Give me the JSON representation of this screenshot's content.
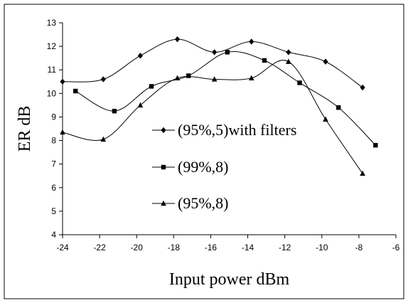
{
  "chart_data": {
    "type": "line",
    "xlabel": "Input power dBm",
    "ylabel": "ER dB",
    "xlim": [
      -24,
      -6
    ],
    "ylim": [
      4,
      13
    ],
    "x_ticks": [
      "-24",
      "-22",
      "-20",
      "-18",
      "-16",
      "-14",
      "-12",
      "-10",
      "-8",
      "-6"
    ],
    "y_ticks": [
      "4",
      "5",
      "6",
      "7",
      "8",
      "9",
      "10",
      "11",
      "12",
      "13"
    ],
    "grid": false,
    "legend_position": "center",
    "series": [
      {
        "name": "(95%,5)with filters",
        "marker": "diamond",
        "points": [
          [
            -24,
            10.5
          ],
          [
            -21.8,
            10.6
          ],
          [
            -19.8,
            11.6
          ],
          [
            -17.8,
            12.3
          ],
          [
            -15.8,
            11.75
          ],
          [
            -13.8,
            12.2
          ],
          [
            -11.8,
            11.75
          ],
          [
            -9.8,
            11.35
          ],
          [
            -7.8,
            10.25
          ]
        ]
      },
      {
        "name": "(99%,8)",
        "marker": "square",
        "points": [
          [
            -23.3,
            10.1
          ],
          [
            -21.2,
            9.25
          ],
          [
            -19.2,
            10.3
          ],
          [
            -17.2,
            10.75
          ],
          [
            -15.1,
            11.75
          ],
          [
            -13.1,
            11.4
          ],
          [
            -11.2,
            10.45
          ],
          [
            -9.1,
            9.4
          ],
          [
            -7.1,
            7.8
          ]
        ]
      },
      {
        "name": "(95%,8)",
        "marker": "triangle",
        "points": [
          [
            -24,
            8.35
          ],
          [
            -21.8,
            8.05
          ],
          [
            -19.8,
            9.5
          ],
          [
            -17.8,
            10.65
          ],
          [
            -15.8,
            10.6
          ],
          [
            -13.8,
            10.65
          ],
          [
            -11.8,
            11.35
          ],
          [
            -9.8,
            8.9
          ],
          [
            -7.8,
            6.6
          ]
        ]
      }
    ]
  }
}
